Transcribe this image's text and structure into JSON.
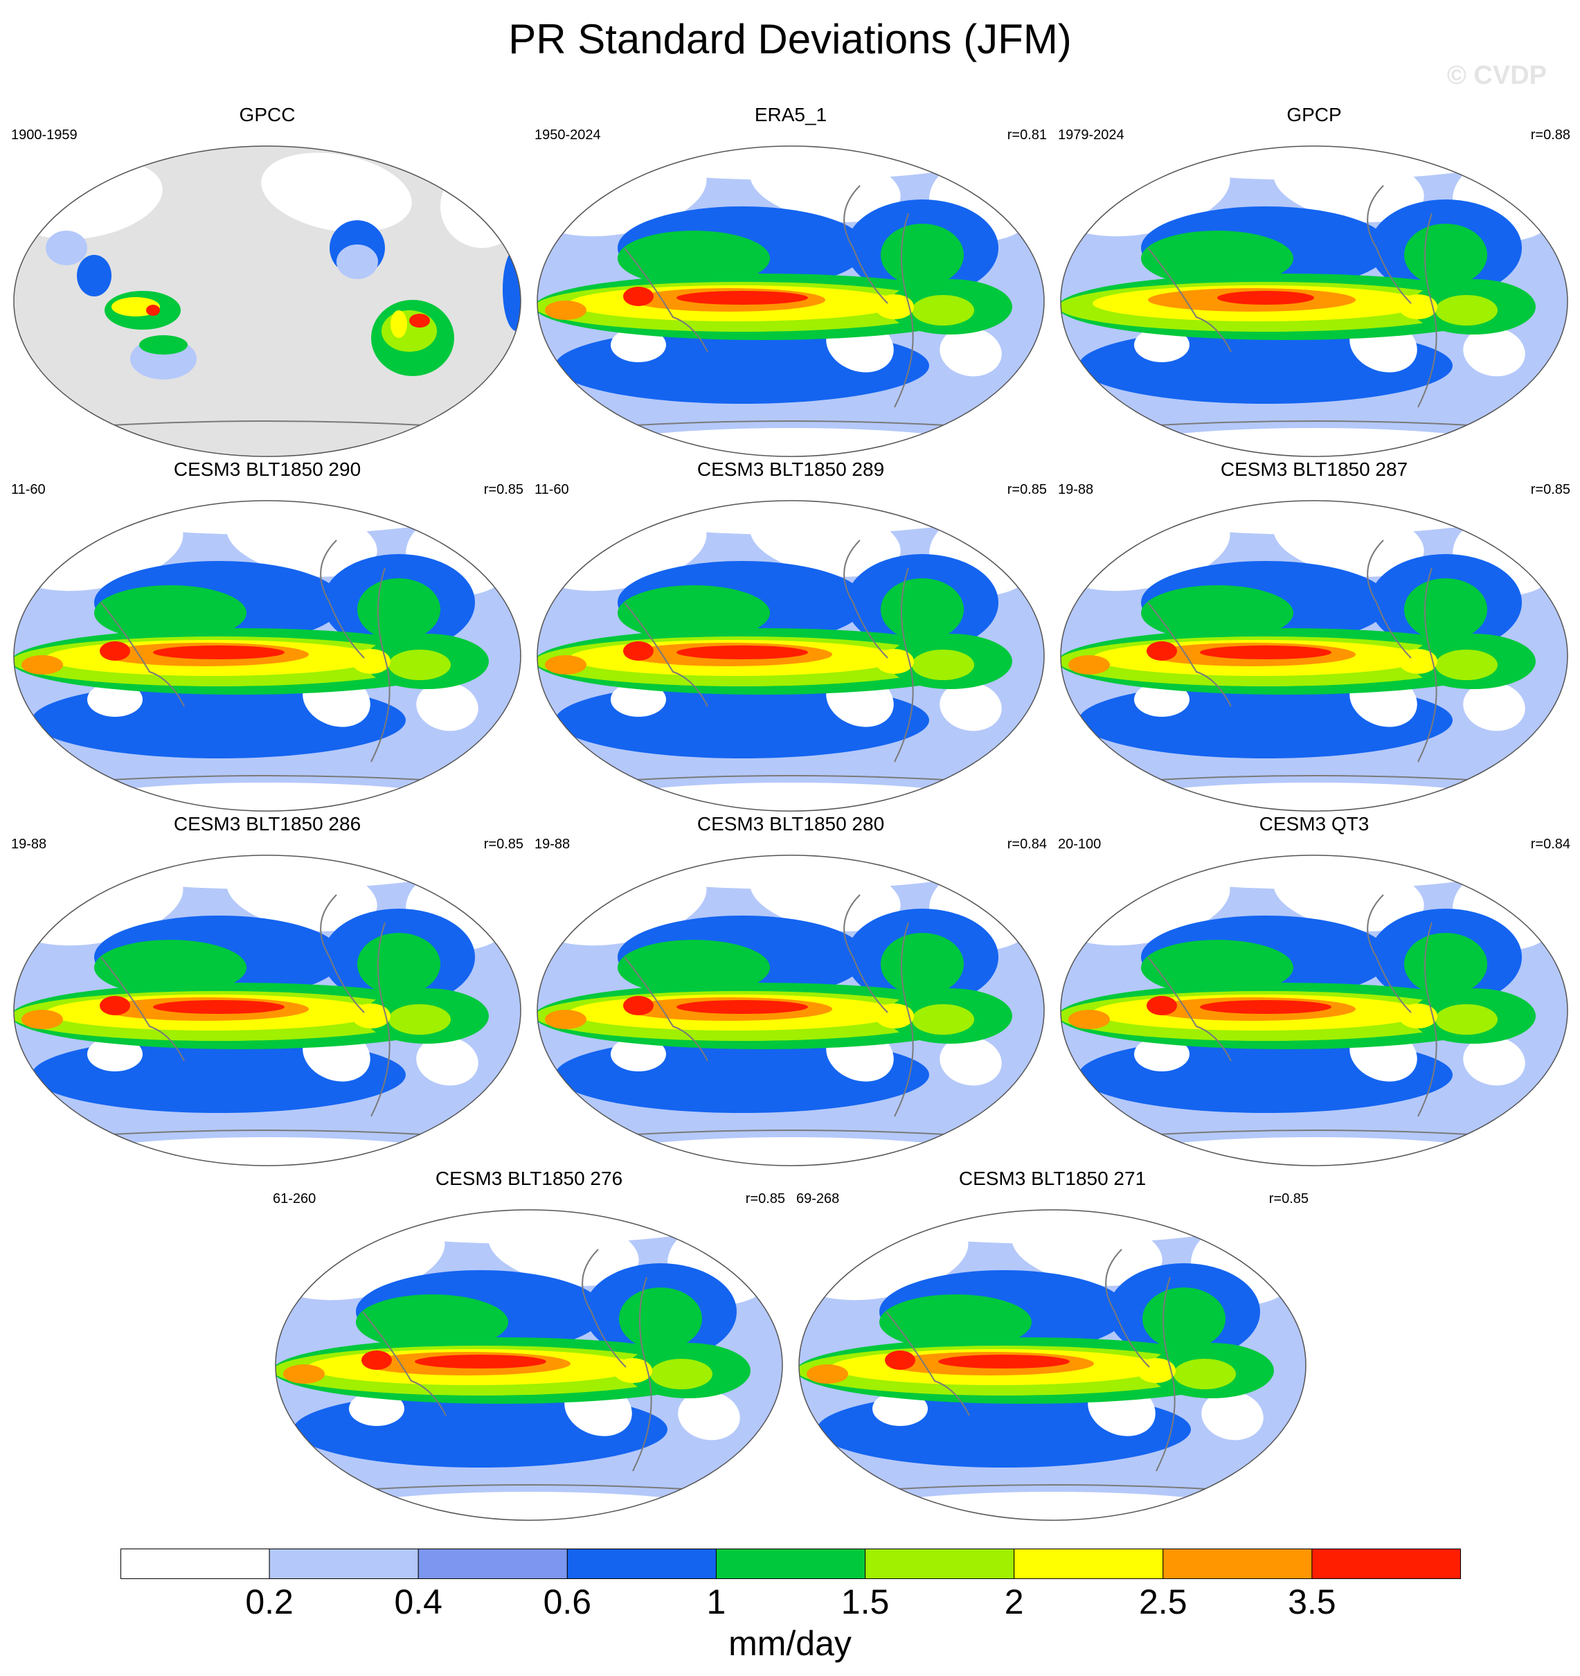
{
  "title": "PR Standard Deviations (JFM)",
  "watermark": "© CVDP",
  "colors": [
    "#ffffff",
    "#b4c8fa",
    "#7d96f0",
    "#1464f0",
    "#00c83c",
    "#a0f000",
    "#ffff00",
    "#ff9600",
    "#ff1e00"
  ],
  "panels": [
    {
      "title": "GPCC",
      "period": "1900-1959",
      "r": "",
      "type": "obs_land"
    },
    {
      "title": "ERA5_1",
      "period": "1950-2024",
      "r": "r=0.81",
      "type": "reanalysis"
    },
    {
      "title": "GPCP",
      "period": "1979-2024",
      "r": "r=0.88",
      "type": "obs_smooth"
    },
    {
      "title": "CESM3 BLT1850 290",
      "period": "11-60",
      "r": "r=0.85",
      "type": "model"
    },
    {
      "title": "CESM3 BLT1850 289",
      "period": "11-60",
      "r": "r=0.85",
      "type": "model"
    },
    {
      "title": "CESM3 BLT1850 287",
      "period": "19-88",
      "r": "r=0.85",
      "type": "model"
    },
    {
      "title": "CESM3 BLT1850 286",
      "period": "19-88",
      "r": "r=0.85",
      "type": "model"
    },
    {
      "title": "CESM3 BLT1850 280",
      "period": "19-88",
      "r": "r=0.84",
      "type": "model"
    },
    {
      "title": "CESM3 QT3",
      "period": "20-100",
      "r": "r=0.84",
      "type": "model"
    },
    {
      "title": "CESM3 BLT1850 276",
      "period": "61-260",
      "r": "r=0.85",
      "type": "model"
    },
    {
      "title": "CESM3 BLT1850 271",
      "period": "69-268",
      "r": "r=0.85",
      "type": "model"
    }
  ],
  "colorbar": {
    "ticks": [
      "0.2",
      "0.4",
      "0.6",
      "1",
      "1.5",
      "2",
      "2.5",
      "3.5"
    ],
    "units": "mm/day"
  }
}
